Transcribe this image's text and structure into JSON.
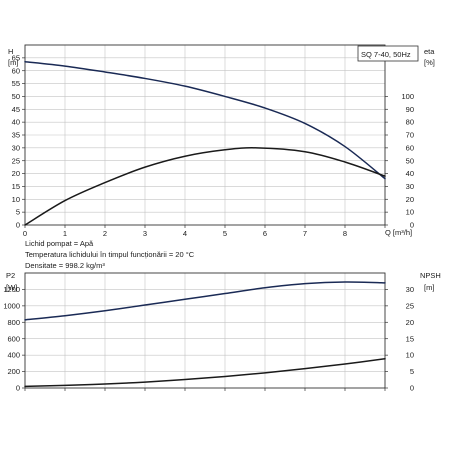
{
  "chart_data": [
    {
      "type": "line",
      "title": "SQ 7-40, 50Hz",
      "xlabel": "Q [m³/h]",
      "ylabel": "H [m]",
      "y2label": "eta [%]",
      "y_axis_title": "H",
      "y_axis_unit": "[m]",
      "y2_axis_title": "eta",
      "y2_axis_unit": "[%]",
      "x_axis_label": "Q [m³/h]",
      "xlim": [
        0,
        9
      ],
      "ylim": [
        0,
        70
      ],
      "y2lim": [
        0,
        140
      ],
      "xticks": [
        "0",
        "1",
        "2",
        "3",
        "4",
        "5",
        "6",
        "7",
        "8"
      ],
      "yticks": [
        "0",
        "5",
        "10",
        "15",
        "20",
        "25",
        "30",
        "35",
        "40",
        "45",
        "50",
        "55",
        "60",
        "65"
      ],
      "y2ticks": [
        "0",
        "10",
        "20",
        "30",
        "40",
        "50",
        "60",
        "70",
        "80",
        "90",
        "100"
      ],
      "grid": true,
      "series": [
        {
          "name": "H",
          "axis": "left",
          "color": "#1a2a55",
          "x": [
            0,
            1,
            2,
            3,
            4,
            5,
            6,
            7,
            8,
            9
          ],
          "y": [
            63.5,
            61.8,
            59.5,
            57.0,
            54.0,
            50.0,
            45.5,
            39.5,
            30.5,
            18.0
          ]
        },
        {
          "name": "eta",
          "axis": "right",
          "color": "#1a1a1a",
          "x": [
            0,
            1,
            2,
            3,
            4,
            5,
            5.8,
            7,
            8,
            9
          ],
          "y": [
            0,
            19,
            33,
            45,
            53.5,
            58.5,
            60,
            57,
            49,
            38
          ]
        }
      ]
    },
    {
      "type": "line",
      "xlabel": "",
      "ylabel": "P2 [W]",
      "y2label": "NPSH [m]",
      "y_axis_title": "P2",
      "y_axis_unit": "[W]",
      "y2_axis_title": "NPSH",
      "y2_axis_unit": "[m]",
      "xlim": [
        0,
        9
      ],
      "ylim": [
        0,
        1400
      ],
      "y2lim": [
        0,
        35
      ],
      "yticks": [
        "0",
        "200",
        "400",
        "600",
        "800",
        "1000",
        "1200"
      ],
      "y2ticks": [
        "0",
        "5",
        "10",
        "15",
        "20",
        "25",
        "30"
      ],
      "grid": true,
      "series": [
        {
          "name": "P2",
          "axis": "left",
          "color": "#1a2a55",
          "x": [
            0,
            1,
            2,
            3,
            4,
            5,
            6,
            7,
            8,
            9
          ],
          "y": [
            830,
            880,
            940,
            1010,
            1080,
            1150,
            1220,
            1270,
            1290,
            1280
          ]
        },
        {
          "name": "NPSH",
          "axis": "right",
          "color": "#1a1a1a",
          "x": [
            0,
            1,
            2,
            3,
            4,
            5,
            6,
            7,
            8,
            9
          ],
          "y": [
            0.5,
            0.8,
            1.2,
            1.8,
            2.6,
            3.5,
            4.6,
            5.9,
            7.3,
            8.9
          ]
        }
      ]
    }
  ],
  "notes": [
    "Lichid pompat = Apă",
    "Temperatura lichidului în timpul funcționării = 20 °C",
    "Densitate = 998.2 kg/m³"
  ]
}
